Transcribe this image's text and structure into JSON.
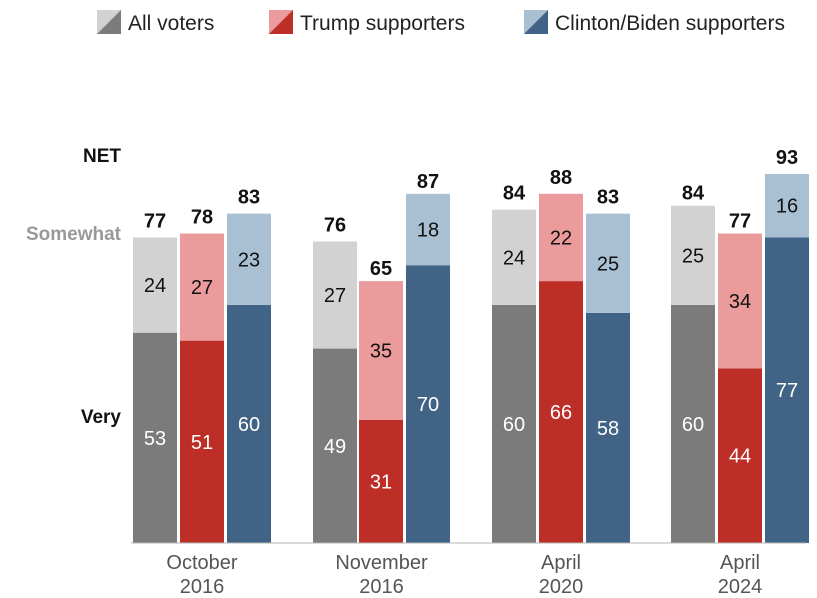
{
  "chart_data": {
    "type": "bar",
    "stacked": true,
    "legend": {
      "placement": "top",
      "entries": [
        {
          "label": "All voters",
          "key": "all"
        },
        {
          "label": "Trump supporters",
          "key": "trump"
        },
        {
          "label": "Clinton/Biden supporters",
          "key": "dem"
        }
      ]
    },
    "row_labels": {
      "net": "NET",
      "somewhat": "Somewhat",
      "very": "Very"
    },
    "groups": [
      {
        "line1": "October",
        "line2": "2016"
      },
      {
        "line1": "November",
        "line2": "2016"
      },
      {
        "line1": "April",
        "line2": "2020"
      },
      {
        "line1": "April",
        "line2": "2024"
      }
    ],
    "series": [
      {
        "key": "all",
        "very": [
          53,
          49,
          60,
          60
        ],
        "somewhat": [
          24,
          27,
          24,
          25
        ],
        "net": [
          77,
          76,
          84,
          84
        ]
      },
      {
        "key": "trump",
        "very": [
          51,
          31,
          66,
          44
        ],
        "somewhat": [
          27,
          35,
          22,
          34
        ],
        "net": [
          78,
          65,
          88,
          77
        ]
      },
      {
        "key": "dem",
        "very": [
          60,
          70,
          58,
          77
        ],
        "somewhat": [
          23,
          18,
          25,
          16
        ],
        "net": [
          83,
          87,
          83,
          93
        ]
      }
    ],
    "ylim": [
      0,
      93
    ],
    "grid": false
  },
  "colors": {
    "all": {
      "very": "#7b7b7b",
      "somewhat": "#d2d2d2"
    },
    "trump": {
      "very": "#bd2e26",
      "somewhat": "#eb9b9b"
    },
    "dem": {
      "very": "#406386",
      "somewhat": "#a9c0d3"
    },
    "row_net": "#111111",
    "row_somewhat": "#999999",
    "row_very": "#111111",
    "baseline": "#b5b5b5"
  }
}
